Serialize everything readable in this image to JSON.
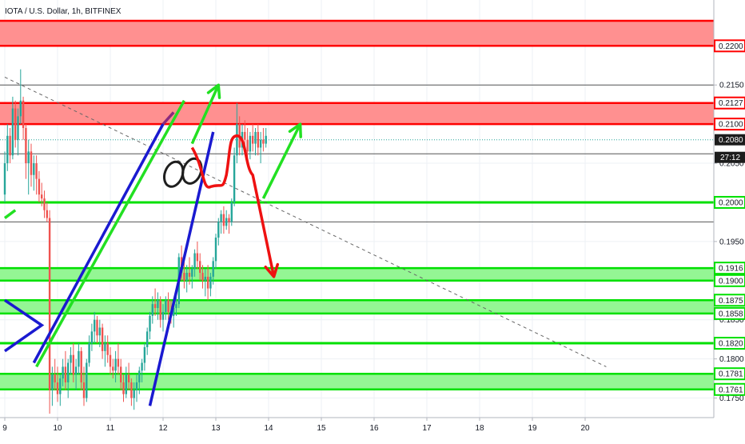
{
  "header": {
    "symbol": "IOTA / U.S. Dollar, 1h, BITFINEX"
  },
  "countdown": "27:12",
  "colors": {
    "up": "#26a69a",
    "down": "#ef5350",
    "resistance_zone": "#ff8a8a",
    "resistance_line": "#ff0000",
    "support_zone": "#8ef58e",
    "support_line": "#00e000",
    "channel": "#1a1ad0",
    "arrow_green": "#22e022",
    "arrow_red": "#ee1111",
    "purple": "#8b2a7e",
    "current_price": "#1c1c1c"
  },
  "chart_data": {
    "type": "candlestick",
    "x_ticks": [
      "9",
      "10",
      "11",
      "12",
      "13",
      "14",
      "15",
      "16",
      "17",
      "18",
      "19",
      "20"
    ],
    "x_range": [
      9.0,
      20.45
    ],
    "ylim": [
      0.1725,
      0.2232
    ],
    "y_ticks": [
      "0.1750",
      "0.1800",
      "0.1850",
      "0.1900",
      "0.1950",
      "0.2000",
      "0.2050",
      "0.2100",
      "0.2150",
      "0.2200"
    ],
    "highlighted_price_labels": [
      {
        "text": "0.2200",
        "value": 0.22,
        "style": "red"
      },
      {
        "text": "0.2127",
        "value": 0.2127,
        "style": "red"
      },
      {
        "text": "0.2100",
        "value": 0.21,
        "style": "red"
      },
      {
        "text": "0.2080",
        "value": 0.208,
        "style": "current"
      },
      {
        "text": "0.2000",
        "value": 0.2,
        "style": "green"
      },
      {
        "text": "0.1916",
        "value": 0.1916,
        "style": "green"
      },
      {
        "text": "0.1900",
        "value": 0.19,
        "style": "green"
      },
      {
        "text": "0.1875",
        "value": 0.1875,
        "style": "green"
      },
      {
        "text": "0.1858",
        "value": 0.1858,
        "style": "green"
      },
      {
        "text": "0.1820",
        "value": 0.182,
        "style": "green"
      },
      {
        "text": "0.1781",
        "value": 0.1781,
        "style": "green"
      },
      {
        "text": "0.1761",
        "value": 0.1761,
        "style": "green"
      }
    ],
    "resistance_zones": [
      [
        0.22,
        0.2232
      ],
      [
        0.21,
        0.2127
      ]
    ],
    "support_zones": [
      [
        0.19,
        0.1916
      ],
      [
        0.1858,
        0.1875
      ],
      [
        0.1761,
        0.1781
      ]
    ],
    "support_lines": [
      0.2,
      0.182
    ],
    "gray_levels": [
      0.215,
      0.2062,
      0.1975
    ],
    "candles": [
      [
        9.0,
        0.201,
        0.2065,
        0.2,
        0.205
      ],
      [
        9.05,
        0.205,
        0.21,
        0.204,
        0.2085
      ],
      [
        9.1,
        0.2085,
        0.2095,
        0.205,
        0.206
      ],
      [
        9.15,
        0.206,
        0.2135,
        0.2055,
        0.212
      ],
      [
        9.2,
        0.212,
        0.213,
        0.207,
        0.208
      ],
      [
        9.25,
        0.208,
        0.212,
        0.206,
        0.211
      ],
      [
        9.3,
        0.211,
        0.217,
        0.21,
        0.213
      ],
      [
        9.35,
        0.213,
        0.2135,
        0.208,
        0.2095
      ],
      [
        9.4,
        0.2095,
        0.21,
        0.203,
        0.205
      ],
      [
        9.45,
        0.205,
        0.208,
        0.201,
        0.2065
      ],
      [
        9.5,
        0.2065,
        0.2075,
        0.202,
        0.2035
      ],
      [
        9.55,
        0.2035,
        0.206,
        0.2015,
        0.205
      ],
      [
        9.6,
        0.205,
        0.206,
        0.201,
        0.203
      ],
      [
        9.65,
        0.203,
        0.204,
        0.2,
        0.201
      ],
      [
        9.7,
        0.201,
        0.2025,
        0.1995,
        0.2005
      ],
      [
        9.75,
        0.2005,
        0.2015,
        0.198,
        0.199
      ],
      [
        9.8,
        0.199,
        0.2,
        0.1975,
        0.198
      ],
      [
        9.85,
        0.198,
        0.199,
        0.173,
        0.176
      ],
      [
        9.9,
        0.176,
        0.179,
        0.174,
        0.178
      ],
      [
        9.95,
        0.178,
        0.18,
        0.176,
        0.177
      ],
      [
        10.0,
        0.177,
        0.179,
        0.1745,
        0.1755
      ],
      [
        10.05,
        0.1755,
        0.178,
        0.174,
        0.1775
      ],
      [
        10.1,
        0.1775,
        0.18,
        0.1765,
        0.179
      ],
      [
        10.15,
        0.179,
        0.181,
        0.176,
        0.177
      ],
      [
        10.2,
        0.177,
        0.18,
        0.175,
        0.1795
      ],
      [
        10.25,
        0.1795,
        0.1815,
        0.178,
        0.1805
      ],
      [
        10.3,
        0.1805,
        0.182,
        0.177,
        0.178
      ],
      [
        10.35,
        0.178,
        0.18,
        0.176,
        0.179
      ],
      [
        10.4,
        0.179,
        0.182,
        0.178,
        0.181
      ],
      [
        10.45,
        0.181,
        0.1815,
        0.176,
        0.177
      ],
      [
        10.5,
        0.177,
        0.179,
        0.174,
        0.175
      ],
      [
        10.55,
        0.175,
        0.18,
        0.1745,
        0.1795
      ],
      [
        10.6,
        0.1795,
        0.183,
        0.179,
        0.182
      ],
      [
        10.65,
        0.182,
        0.1845,
        0.181,
        0.1835
      ],
      [
        10.7,
        0.1835,
        0.186,
        0.182,
        0.185
      ],
      [
        10.75,
        0.185,
        0.1855,
        0.182,
        0.183
      ],
      [
        10.8,
        0.183,
        0.185,
        0.1815,
        0.184
      ],
      [
        10.85,
        0.184,
        0.1845,
        0.18,
        0.181
      ],
      [
        10.9,
        0.181,
        0.183,
        0.179,
        0.182
      ],
      [
        10.95,
        0.182,
        0.183,
        0.1795,
        0.1805
      ],
      [
        11.0,
        0.1805,
        0.1815,
        0.178,
        0.179
      ],
      [
        11.05,
        0.179,
        0.18,
        0.1775,
        0.1785
      ],
      [
        11.1,
        0.1785,
        0.181,
        0.177,
        0.18
      ],
      [
        11.15,
        0.18,
        0.182,
        0.178,
        0.179
      ],
      [
        11.2,
        0.179,
        0.18,
        0.176,
        0.177
      ],
      [
        11.25,
        0.177,
        0.178,
        0.1745,
        0.1755
      ],
      [
        11.3,
        0.1755,
        0.179,
        0.175,
        0.178
      ],
      [
        11.35,
        0.178,
        0.1795,
        0.176,
        0.177
      ],
      [
        11.4,
        0.177,
        0.1775,
        0.174,
        0.175
      ],
      [
        11.45,
        0.175,
        0.177,
        0.1735,
        0.176
      ],
      [
        11.5,
        0.176,
        0.178,
        0.1745,
        0.177
      ],
      [
        11.55,
        0.177,
        0.179,
        0.1755,
        0.1785
      ],
      [
        11.6,
        0.1785,
        0.18,
        0.177,
        0.1795
      ],
      [
        11.65,
        0.1795,
        0.182,
        0.1785,
        0.1815
      ],
      [
        11.7,
        0.1815,
        0.184,
        0.1805,
        0.1835
      ],
      [
        11.75,
        0.1835,
        0.186,
        0.1825,
        0.1855
      ],
      [
        11.8,
        0.1855,
        0.188,
        0.1845,
        0.187
      ],
      [
        11.85,
        0.187,
        0.189,
        0.1855,
        0.1865
      ],
      [
        11.9,
        0.1865,
        0.1885,
        0.185,
        0.1875
      ],
      [
        11.95,
        0.1875,
        0.188,
        0.184,
        0.185
      ],
      [
        12.0,
        0.185,
        0.187,
        0.1835,
        0.186
      ],
      [
        12.05,
        0.186,
        0.188,
        0.185,
        0.1875
      ],
      [
        12.1,
        0.1875,
        0.1885,
        0.185,
        0.186
      ],
      [
        12.15,
        0.186,
        0.1875,
        0.1845,
        0.1855
      ],
      [
        12.2,
        0.1855,
        0.187,
        0.184,
        0.1865
      ],
      [
        12.25,
        0.1865,
        0.188,
        0.1855,
        0.187
      ],
      [
        12.3,
        0.187,
        0.1935,
        0.1865,
        0.193
      ],
      [
        12.35,
        0.193,
        0.1945,
        0.19,
        0.191
      ],
      [
        12.4,
        0.191,
        0.1925,
        0.189,
        0.19
      ],
      [
        12.45,
        0.19,
        0.192,
        0.1885,
        0.191
      ],
      [
        12.5,
        0.191,
        0.193,
        0.1895,
        0.1905
      ],
      [
        12.55,
        0.1905,
        0.192,
        0.189,
        0.1915
      ],
      [
        12.6,
        0.1915,
        0.194,
        0.1905,
        0.1935
      ],
      [
        12.65,
        0.1935,
        0.195,
        0.1915,
        0.1925
      ],
      [
        12.7,
        0.1925,
        0.1935,
        0.19,
        0.191
      ],
      [
        12.75,
        0.191,
        0.192,
        0.189,
        0.19
      ],
      [
        12.8,
        0.19,
        0.1915,
        0.188,
        0.1905
      ],
      [
        12.85,
        0.1905,
        0.192,
        0.1875,
        0.189
      ],
      [
        12.9,
        0.189,
        0.191,
        0.188,
        0.1905
      ],
      [
        12.95,
        0.1905,
        0.193,
        0.1895,
        0.1925
      ],
      [
        13.0,
        0.1925,
        0.196,
        0.1915,
        0.1955
      ],
      [
        13.05,
        0.1955,
        0.198,
        0.1945,
        0.1975
      ],
      [
        13.1,
        0.1975,
        0.199,
        0.196,
        0.1985
      ],
      [
        13.15,
        0.1985,
        0.1995,
        0.196,
        0.197
      ],
      [
        13.2,
        0.197,
        0.199,
        0.1965,
        0.198
      ],
      [
        13.25,
        0.198,
        0.1985,
        0.196,
        0.1975
      ],
      [
        13.3,
        0.1975,
        0.2005,
        0.197,
        0.2
      ],
      [
        13.35,
        0.2,
        0.207,
        0.1995,
        0.206
      ],
      [
        13.4,
        0.206,
        0.2127,
        0.205,
        0.21
      ],
      [
        13.45,
        0.21,
        0.211,
        0.206,
        0.207
      ],
      [
        13.5,
        0.207,
        0.21,
        0.206,
        0.209
      ],
      [
        13.55,
        0.209,
        0.2105,
        0.207,
        0.208
      ],
      [
        13.6,
        0.208,
        0.2095,
        0.2055,
        0.2065
      ],
      [
        13.65,
        0.2065,
        0.209,
        0.2055,
        0.2085
      ],
      [
        13.7,
        0.2085,
        0.21,
        0.2065,
        0.2075
      ],
      [
        13.75,
        0.2075,
        0.2095,
        0.206,
        0.209
      ],
      [
        13.8,
        0.209,
        0.21,
        0.206,
        0.207
      ],
      [
        13.85,
        0.207,
        0.209,
        0.205,
        0.208
      ],
      [
        13.9,
        0.208,
        0.2095,
        0.2065,
        0.2075
      ],
      [
        13.95,
        0.2075,
        0.2095,
        0.207,
        0.2085
      ]
    ],
    "channel_lines": [
      [
        [
          9.55,
          0.1795
        ],
        [
          12.0,
          0.21
        ]
      ],
      [
        [
          11.75,
          0.174
        ],
        [
          12.95,
          0.209
        ]
      ]
    ],
    "channel_top_green": [
      [
        9.6,
        0.179
      ],
      [
        12.4,
        0.213
      ]
    ],
    "diagonal_dotted": [
      [
        9.0,
        0.216
      ],
      [
        20.4,
        0.179
      ]
    ],
    "purple_tail": [
      [
        12.0,
        0.21
      ],
      [
        12.2,
        0.2115
      ]
    ],
    "triangle": [
      [
        9.0,
        0.1875
      ],
      [
        9.7,
        0.1843
      ],
      [
        9.0,
        0.181
      ]
    ],
    "green_short_line": [
      [
        9.0,
        0.198
      ],
      [
        9.2,
        0.199
      ]
    ],
    "ellipses": [
      [
        12.2,
        0.2036
      ],
      [
        12.55,
        0.204
      ]
    ],
    "green_arrows": [
      [
        [
          12.55,
          0.2075
        ],
        [
          13.05,
          0.215
        ]
      ],
      [
        [
          13.9,
          0.2005
        ],
        [
          14.6,
          0.21
        ]
      ]
    ],
    "red_path": [
      [
        12.55,
        0.207
      ],
      [
        12.9,
        0.202
      ],
      [
        13.2,
        0.2035
      ],
      [
        13.4,
        0.2085
      ],
      [
        13.7,
        0.2035
      ],
      [
        14.1,
        0.1905
      ]
    ]
  }
}
